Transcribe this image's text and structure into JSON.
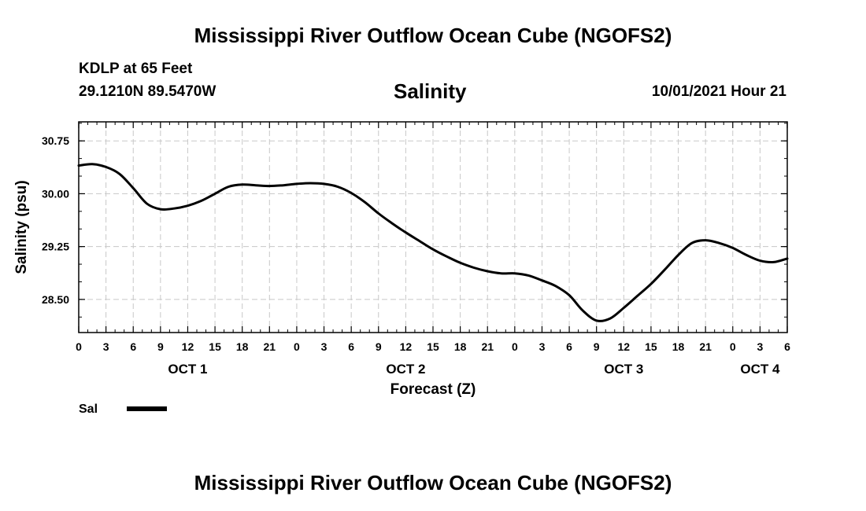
{
  "header": {
    "title": "Mississippi River Outflow Ocean Cube (NGOFS2)",
    "station": "KDLP at 65 Feet",
    "coords": "29.1210N  89.5470W",
    "variable": "Salinity",
    "datetime": "10/01/2021 Hour 21"
  },
  "footer": {
    "title": "Mississippi River Outflow Ocean Cube (NGOFS2)"
  },
  "chart_data": {
    "type": "line",
    "title": "Salinity",
    "xlabel": "Forecast (Z)",
    "ylabel": "Salinity (psu)",
    "xlim": [
      0,
      78
    ],
    "ylim": [
      28.03,
      31.02
    ],
    "grid": true,
    "yticks": [
      28.5,
      29.25,
      30.0,
      30.75
    ],
    "ytick_labels": [
      "28.50",
      "29.25",
      "30.00",
      "30.75"
    ],
    "xticks": [
      0,
      3,
      6,
      9,
      12,
      15,
      18,
      21,
      24,
      27,
      30,
      33,
      36,
      39,
      42,
      45,
      48,
      51,
      54,
      57,
      60,
      63,
      66,
      69,
      72,
      75,
      78
    ],
    "xtick_labels": [
      "0",
      "3",
      "6",
      "9",
      "12",
      "15",
      "18",
      "21",
      "0",
      "3",
      "6",
      "9",
      "12",
      "15",
      "18",
      "21",
      "0",
      "3",
      "6",
      "9",
      "12",
      "15",
      "18",
      "21",
      "0",
      "3",
      "6"
    ],
    "day_labels": [
      {
        "label": "OCT 1",
        "x": 12
      },
      {
        "label": "OCT 2",
        "x": 36
      },
      {
        "label": "OCT 3",
        "x": 60
      },
      {
        "label": "OCT 4",
        "x": 75
      }
    ],
    "legend": {
      "position": "bottom-left",
      "entries": [
        {
          "label": "Sal"
        }
      ]
    },
    "series": [
      {
        "name": "Sal",
        "color": "#000000",
        "x": [
          0,
          1.5,
          3,
          4.5,
          6,
          7.5,
          9,
          10.5,
          12,
          13.5,
          15,
          16.5,
          18,
          19.5,
          21,
          22.5,
          24,
          25.5,
          27,
          28.5,
          30,
          31.5,
          33,
          34.5,
          36,
          37.5,
          39,
          40.5,
          42,
          43.5,
          45,
          46.5,
          48,
          49.5,
          51,
          52.5,
          54,
          55.5,
          57,
          58.5,
          60,
          61.5,
          63,
          64.5,
          66,
          67.5,
          69,
          70.5,
          72,
          73.5,
          75,
          76.5,
          78
        ],
        "values": [
          30.4,
          30.42,
          30.38,
          30.28,
          30.08,
          29.86,
          29.78,
          29.79,
          29.83,
          29.9,
          30.0,
          30.1,
          30.13,
          30.12,
          30.11,
          30.12,
          30.14,
          30.15,
          30.14,
          30.1,
          30.01,
          29.88,
          29.72,
          29.58,
          29.45,
          29.33,
          29.21,
          29.11,
          29.02,
          28.95,
          28.9,
          28.87,
          28.87,
          28.84,
          28.77,
          28.69,
          28.56,
          28.34,
          28.2,
          28.23,
          28.38,
          28.55,
          28.72,
          28.92,
          29.13,
          29.3,
          29.34,
          29.3,
          29.23,
          29.13,
          29.05,
          29.03,
          29.08
        ]
      }
    ]
  }
}
